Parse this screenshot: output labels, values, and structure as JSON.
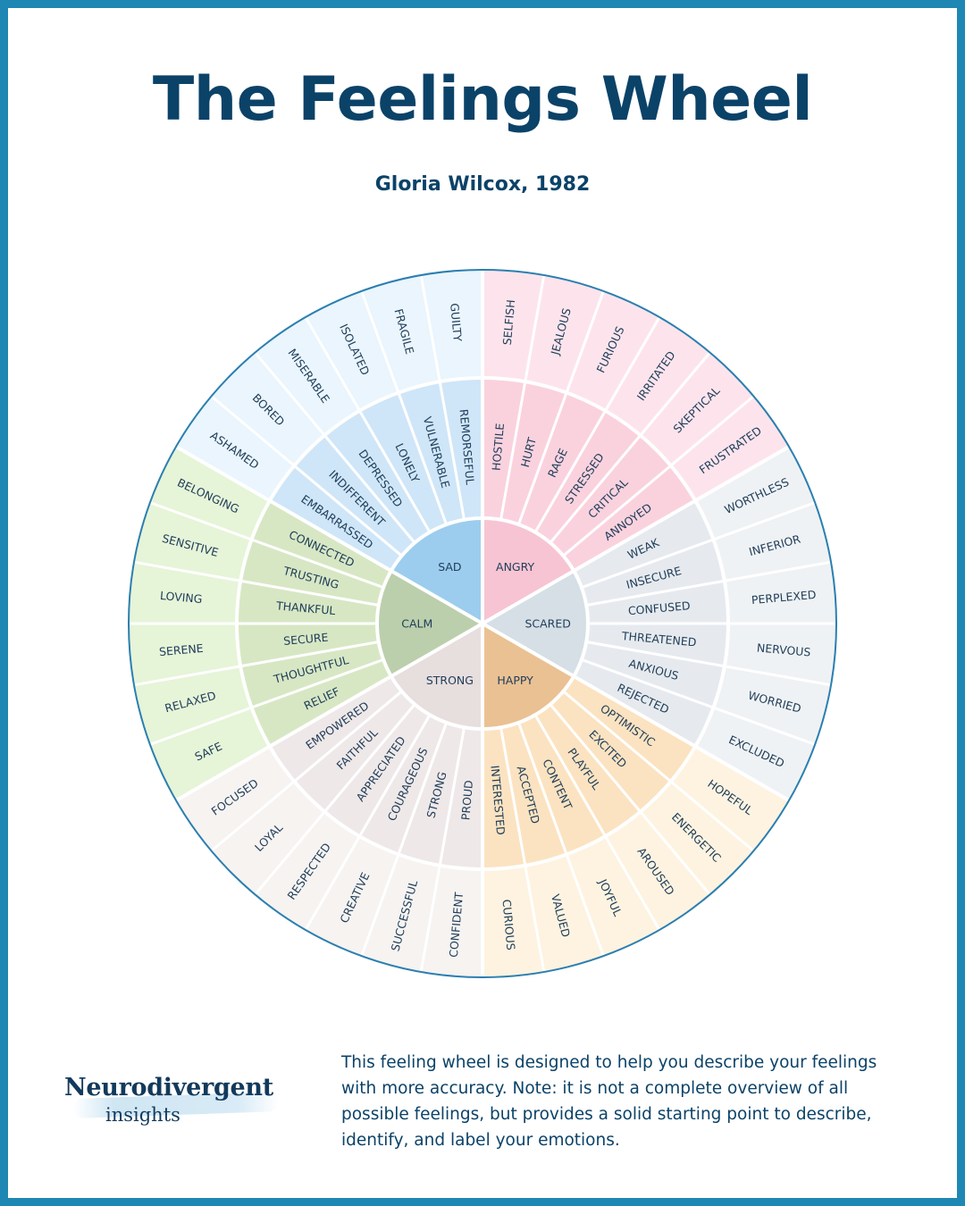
{
  "title": "The Feelings Wheel",
  "subtitle": "Gloria Wilcox, 1982",
  "brand": {
    "name": "Neurodivergent",
    "sub": "insights"
  },
  "description": "This feeling wheel is designed to help you describe your feelings with more accuracy. Note: it is not a complete overview of all possible feelings, but provides a solid starting point to describe, identify, and label your emotions.",
  "wheel": {
    "segments": [
      {
        "name": "ANGRY",
        "colors": {
          "core": "#f7c4d3",
          "middle": "#fad2de",
          "outer": "#fde4ec"
        },
        "middle": [
          "ANNOYED",
          "CRITICAL",
          "STRESSED",
          "RAGE",
          "HURT",
          "HOSTILE"
        ],
        "outer": [
          "FRUSTRATED",
          "SKEPTICAL",
          "IRRITATED",
          "FURIOUS",
          "JEALOUS",
          "SELFISH"
        ]
      },
      {
        "name": "SAD",
        "colors": {
          "core": "#9ccdee",
          "middle": "#cfe6f8",
          "outer": "#eaf5fd"
        },
        "middle": [
          "REMORSEFUL",
          "VULNERABLE",
          "LONELY",
          "DEPRESSED",
          "INDIFFERENT",
          "EMBARRASSED"
        ],
        "outer": [
          "GUILTY",
          "FRAGILE",
          "ISOLATED",
          "MISERABLE",
          "BORED",
          "ASHAMED"
        ]
      },
      {
        "name": "CALM",
        "colors": {
          "core": "#bccfac",
          "middle": "#d7e7c4",
          "outer": "#e6f4d8"
        },
        "middle": [
          "CONNECTED",
          "TRUSTING",
          "THANKFUL",
          "SECURE",
          "THOUGHTFUL",
          "RELIEF"
        ],
        "outer": [
          "BELONGING",
          "SENSITIVE",
          "LOVING",
          "SERENE",
          "RELAXED",
          "SAFE"
        ]
      },
      {
        "name": "STRONG",
        "colors": {
          "core": "#e7dede",
          "middle": "#efe8e8",
          "outer": "#f6f3f1"
        },
        "middle": [
          "EMPOWERED",
          "FAITHFUL",
          "APPRECIATED",
          "COURAGEOUS",
          "STRONG",
          "PROUD"
        ],
        "outer": [
          "FOCUSED",
          "LOYAL",
          "RESPECTED",
          "CREATIVE",
          "SUCCESSFUL",
          "CONFIDENT"
        ]
      },
      {
        "name": "HAPPY",
        "colors": {
          "core": "#eac193",
          "middle": "#fbe3c1",
          "outer": "#fdf3e0"
        },
        "middle": [
          "INTERESTED",
          "ACCEPTED",
          "CONTENT",
          "PLAYFUL",
          "EXCITED",
          "OPTIMISTIC"
        ],
        "outer": [
          "CURIOUS",
          "VALUED",
          "JOYFUL",
          "AROUSED",
          "ENERGETIC",
          "HOPEFUL"
        ]
      },
      {
        "name": "SCARED",
        "colors": {
          "core": "#d6dfe6",
          "middle": "#e6eaee",
          "outer": "#eff2f4"
        },
        "middle": [
          "REJECTED",
          "ANXIOUS",
          "THREATENED",
          "CONFUSED",
          "INSECURE",
          "WEAK"
        ],
        "outer": [
          "EXCLUDED",
          "WORRIED",
          "NERVOUS",
          "PERPLEXED",
          "INFERIOR",
          "WORTHLESS"
        ]
      }
    ],
    "text_color": "#1f3d59",
    "divider_color": "#ffffff",
    "rim_color": "#2b7fb0"
  }
}
